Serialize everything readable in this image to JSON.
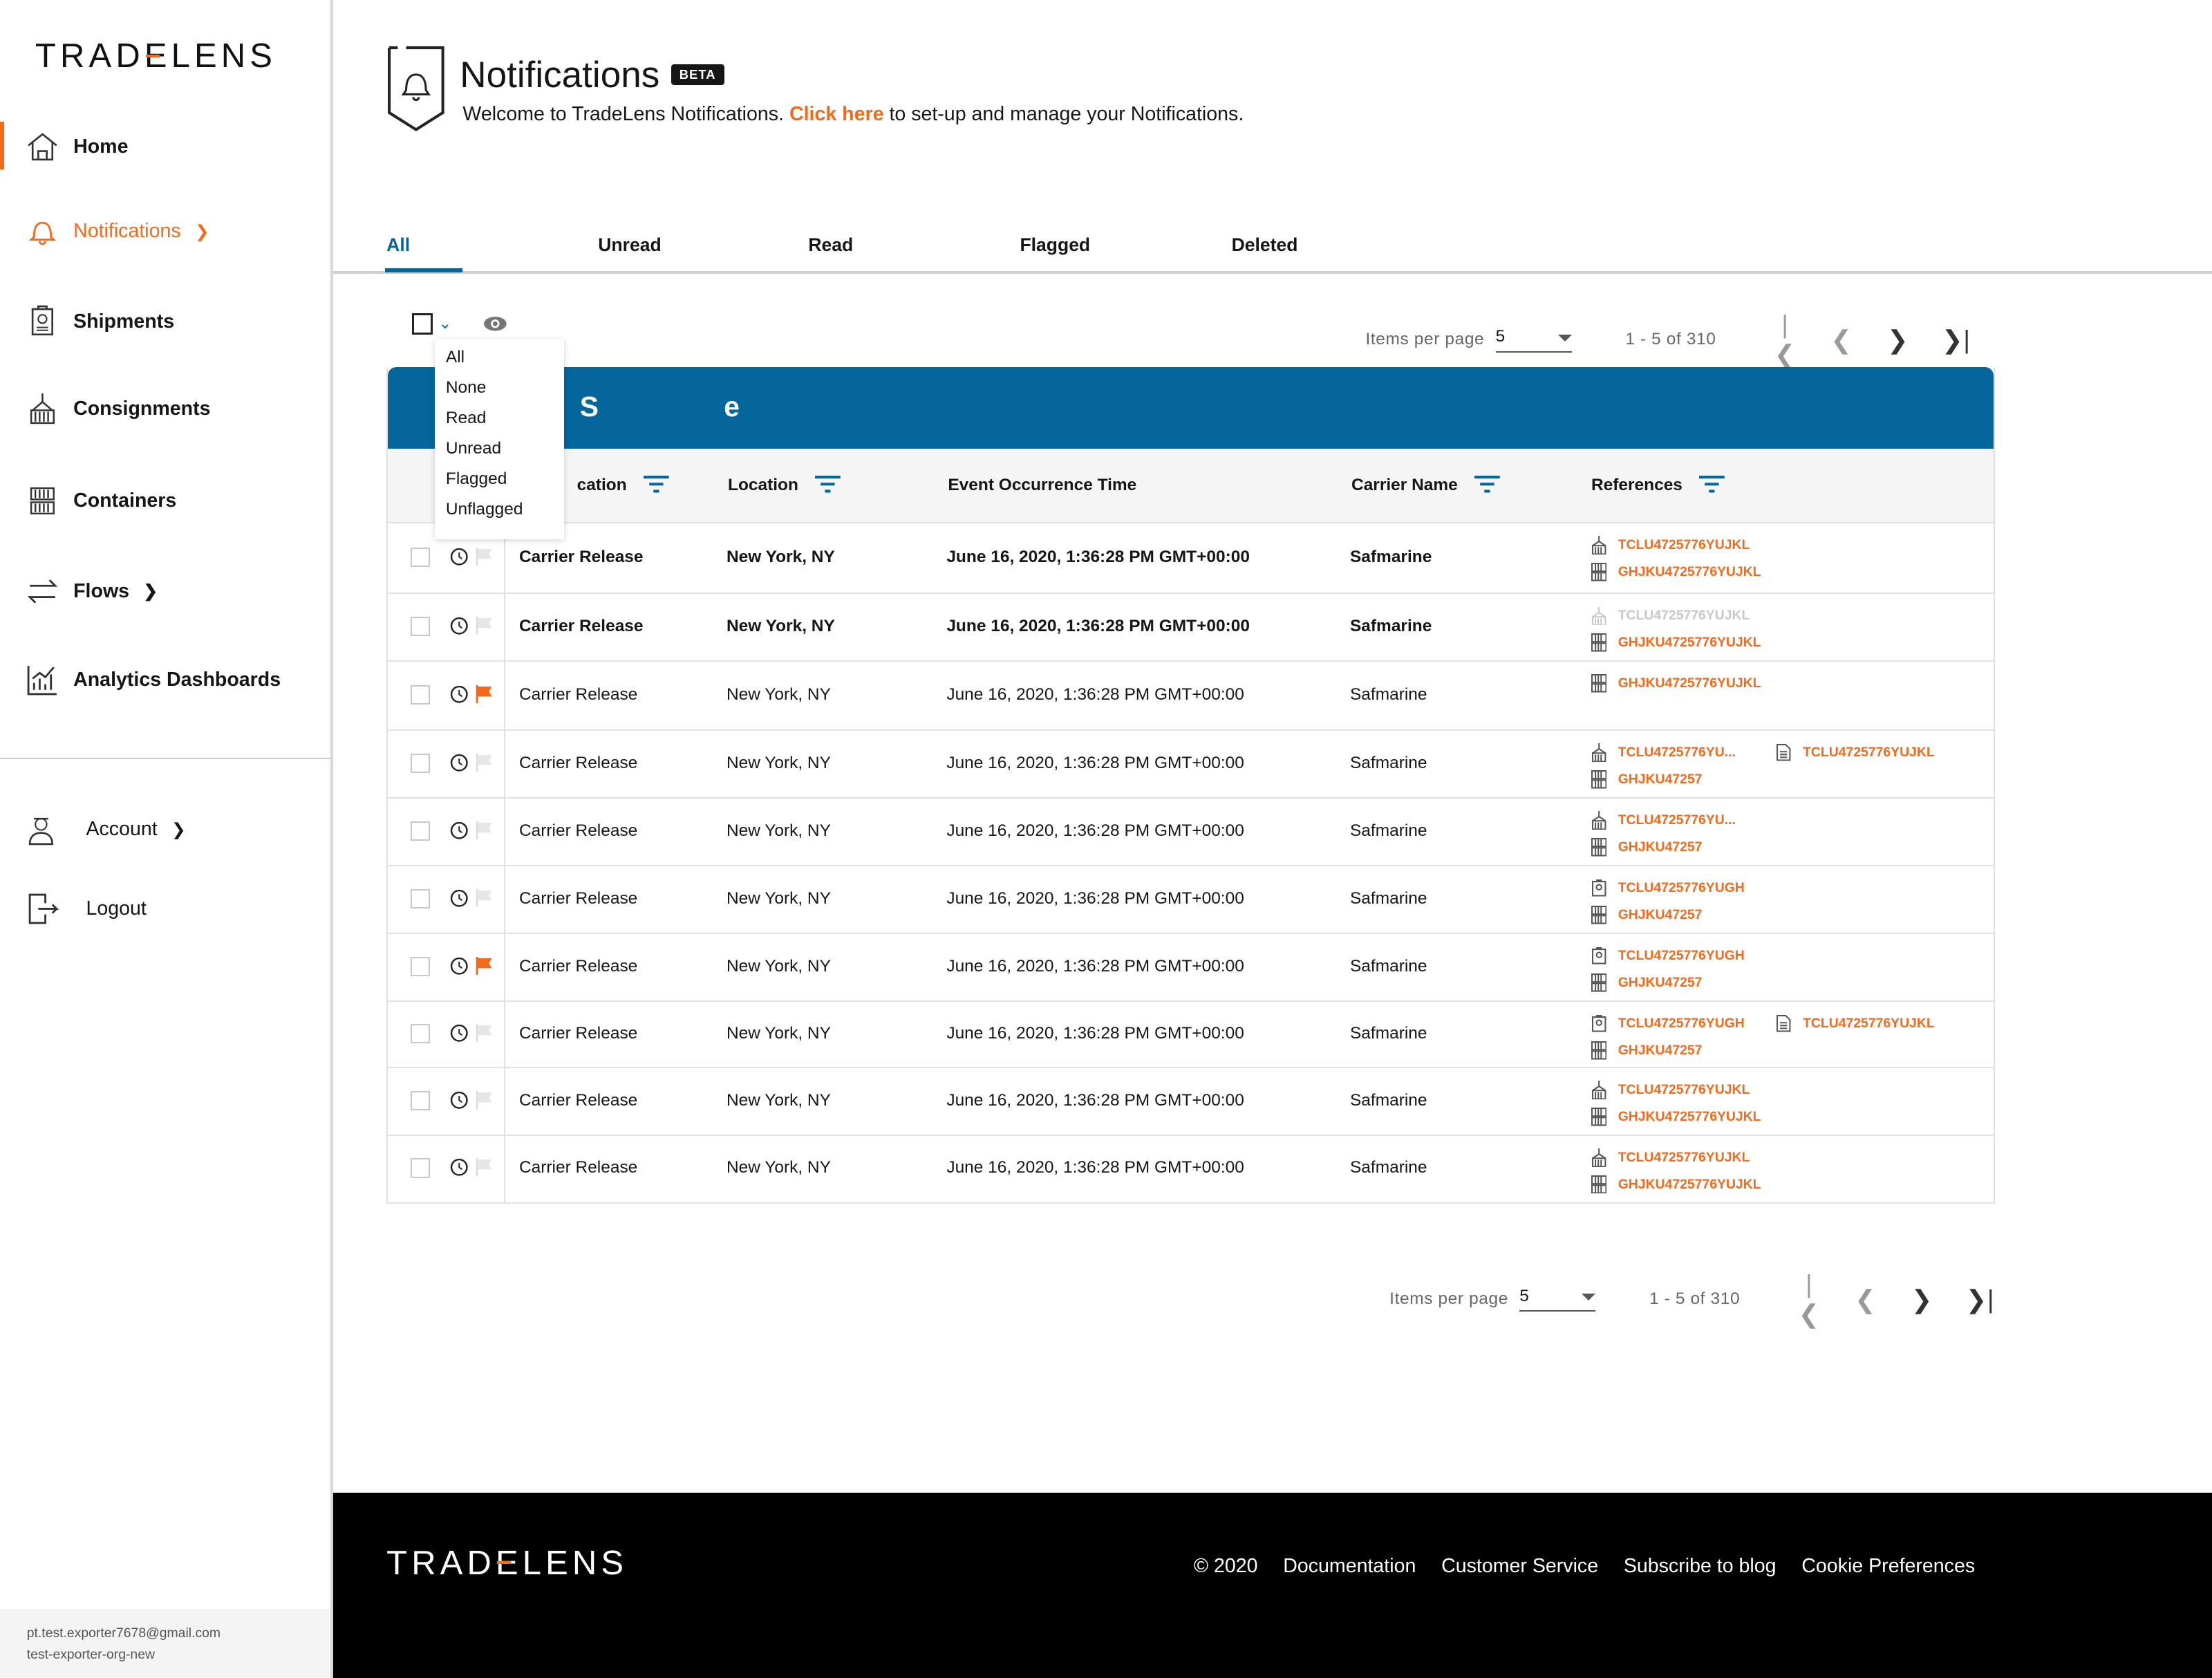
{
  "brand": {
    "logo_text": "TRADELENS",
    "accent": "#f26b1d",
    "primary": "#05669b"
  },
  "sidebar": {
    "items": [
      {
        "label": "Home",
        "icon": "home-icon"
      },
      {
        "label": "Notifications",
        "icon": "bell-icon",
        "active": true,
        "chevron": true
      },
      {
        "label": "Shipments",
        "icon": "shipment-icon"
      },
      {
        "label": "Consignments",
        "icon": "consignment-icon"
      },
      {
        "label": "Containers",
        "icon": "container-icon"
      },
      {
        "label": "Flows",
        "icon": "flows-icon",
        "chevron": true
      },
      {
        "label": "Analytics Dashboards",
        "icon": "analytics-icon"
      }
    ],
    "bottom": [
      {
        "label": "Account",
        "icon": "account-icon",
        "chevron": true
      },
      {
        "label": "Logout",
        "icon": "logout-icon"
      }
    ],
    "user_email": "pt.test.exporter7678@gmail.com",
    "user_org": "test-exporter-org-new"
  },
  "header": {
    "title": "Notifications",
    "badge": "BETA",
    "welcome_pre": "Welcome to TradeLens Notifications.",
    "welcome_link": "Click here",
    "welcome_post": "to set-up and manage your Notifications."
  },
  "tabs": [
    {
      "label": "All",
      "active": true
    },
    {
      "label": "Unread"
    },
    {
      "label": "Read"
    },
    {
      "label": "Flagged"
    },
    {
      "label": "Deleted"
    }
  ],
  "pager": {
    "label": "Items per page",
    "per_page": "5",
    "range": "1 - 5 of 310"
  },
  "select_menu": [
    "All",
    "None",
    "Read",
    "Unread",
    "Flagged",
    "Unflagged"
  ],
  "banner": {
    "title": "S                e"
  },
  "columns": [
    "cation",
    "Location",
    "Event Occurrence Time",
    "Carrier Name",
    "References"
  ],
  "rows": [
    {
      "unread": true,
      "flagged": false,
      "event": "Carrier Release",
      "location": "New York, NY",
      "time": "June 16, 2020, 1:36:28 PM GMT+00:00",
      "carrier": "Safmarine",
      "refs": [
        {
          "type": "consignment",
          "text": "TCLU4725776YUJKL"
        },
        {
          "type": "container",
          "text": "GHJKU4725776YUJKL"
        }
      ]
    },
    {
      "unread": true,
      "flagged": false,
      "event": "Carrier Release",
      "location": "New York, NY",
      "time": "June 16, 2020, 1:36:28 PM GMT+00:00",
      "carrier": "Safmarine",
      "refs": [
        {
          "type": "consignment",
          "text": "TCLU4725776YUJKL",
          "faded": true
        },
        {
          "type": "container",
          "text": "GHJKU4725776YUJKL"
        }
      ]
    },
    {
      "unread": false,
      "flagged": true,
      "event": "Carrier Release",
      "location": "New York, NY",
      "time": "June 16, 2020, 1:36:28 PM GMT+00:00",
      "carrier": "Safmarine",
      "refs": [
        {
          "type": "container",
          "text": "GHJKU4725776YUJKL"
        }
      ]
    },
    {
      "unread": false,
      "flagged": false,
      "event": "Carrier Release",
      "location": "New York, NY",
      "time": "June 16, 2020, 1:36:28 PM GMT+00:00",
      "carrier": "Safmarine",
      "refs": [
        {
          "type": "consignment",
          "text": "TCLU4725776YU..."
        },
        {
          "type": "container",
          "text": "GHJKU47257"
        },
        {
          "type": "document",
          "text": "TCLU4725776YUJKL"
        }
      ]
    },
    {
      "unread": false,
      "flagged": false,
      "event": "Carrier Release",
      "location": "New York, NY",
      "time": "June 16, 2020, 1:36:28 PM GMT+00:00",
      "carrier": "Safmarine",
      "refs": [
        {
          "type": "consignment",
          "text": "TCLU4725776YU..."
        },
        {
          "type": "container",
          "text": "GHJKU47257"
        }
      ]
    },
    {
      "unread": false,
      "flagged": false,
      "event": "Carrier Release",
      "location": "New York, NY",
      "time": "June 16, 2020, 1:36:28 PM GMT+00:00",
      "carrier": "Safmarine",
      "refs": [
        {
          "type": "shipment",
          "text": "TCLU4725776YUGH"
        },
        {
          "type": "container",
          "text": "GHJKU47257"
        }
      ]
    },
    {
      "unread": false,
      "flagged": true,
      "event": "Carrier Release",
      "location": "New York, NY",
      "time": "June 16, 2020, 1:36:28 PM GMT+00:00",
      "carrier": "Safmarine",
      "refs": [
        {
          "type": "shipment",
          "text": "TCLU4725776YUGH"
        },
        {
          "type": "container",
          "text": "GHJKU47257"
        }
      ]
    },
    {
      "unread": false,
      "flagged": false,
      "event": "Carrier Release",
      "location": "New York, NY",
      "time": "June 16, 2020, 1:36:28 PM GMT+00:00",
      "carrier": "Safmarine",
      "refs": [
        {
          "type": "shipment",
          "text": "TCLU4725776YUGH"
        },
        {
          "type": "container",
          "text": "GHJKU47257"
        },
        {
          "type": "document",
          "text": "TCLU4725776YUJKL"
        }
      ]
    },
    {
      "unread": false,
      "flagged": false,
      "event": "Carrier Release",
      "location": "New York, NY",
      "time": "June 16, 2020, 1:36:28 PM GMT+00:00",
      "carrier": "Safmarine",
      "refs": [
        {
          "type": "consignment",
          "text": "TCLU4725776YUJKL"
        },
        {
          "type": "container",
          "text": "GHJKU4725776YUJKL"
        }
      ]
    },
    {
      "unread": false,
      "flagged": false,
      "event": "Carrier Release",
      "location": "New York, NY",
      "time": "June 16, 2020, 1:36:28 PM GMT+00:00",
      "carrier": "Safmarine",
      "refs": [
        {
          "type": "consignment",
          "text": "TCLU4725776YUJKL"
        },
        {
          "type": "container",
          "text": "GHJKU4725776YUJKL"
        }
      ]
    }
  ],
  "footer": {
    "links": [
      "© 2020",
      "Documentation",
      "Customer Service",
      "Subscribe to blog",
      "Cookie Preferences"
    ]
  }
}
